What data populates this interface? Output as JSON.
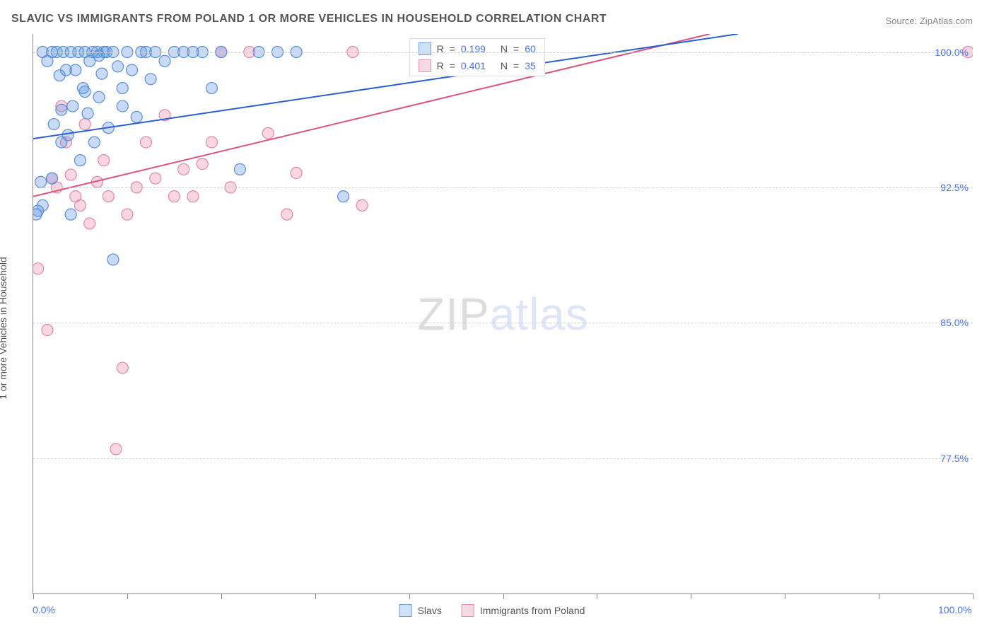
{
  "title": "SLAVIC VS IMMIGRANTS FROM POLAND 1 OR MORE VEHICLES IN HOUSEHOLD CORRELATION CHART",
  "source_label": "Source: ",
  "source_value": "ZipAtlas.com",
  "ylabel": "1 or more Vehicles in Household",
  "watermark_a": "ZIP",
  "watermark_b": "atlas",
  "axes": {
    "xlim": [
      0,
      100
    ],
    "ylim": [
      70,
      101
    ],
    "yticks": [
      77.5,
      85.0,
      92.5,
      100.0
    ],
    "ytick_labels": [
      "77.5%",
      "85.0%",
      "92.5%",
      "100.0%"
    ],
    "xticks": [
      0,
      10,
      20,
      30,
      40,
      50,
      60,
      70,
      80,
      90,
      100
    ],
    "xlabel_min": "0.0%",
    "xlabel_max": "100.0%",
    "grid_color": "#d0d0d0",
    "axis_color": "#888888",
    "tick_label_color": "#4a74e8"
  },
  "series": {
    "slavs": {
      "label": "Slavs",
      "color_fill": "rgba(96,150,230,0.35)",
      "color_stroke": "#5a8fd8",
      "swatch_fill": "#cfe0f7",
      "swatch_border": "#6a9fe0",
      "R": "0.199",
      "N": "60",
      "trend": {
        "x1": 0,
        "y1": 95.2,
        "x2": 75,
        "y2": 101,
        "stroke": "#2a5fd0",
        "width": 2
      },
      "points": [
        [
          0.5,
          91.2
        ],
        [
          1.0,
          100
        ],
        [
          1.5,
          99.5
        ],
        [
          2.0,
          100
        ],
        [
          2.2,
          96.0
        ],
        [
          2.5,
          100
        ],
        [
          2.8,
          98.7
        ],
        [
          3.0,
          95.0
        ],
        [
          3.2,
          100
        ],
        [
          3.5,
          99.0
        ],
        [
          3.7,
          95.4
        ],
        [
          4.0,
          100
        ],
        [
          4.2,
          97.0
        ],
        [
          4.5,
          99.0
        ],
        [
          4.8,
          100
        ],
        [
          5.0,
          94.0
        ],
        [
          5.3,
          98.0
        ],
        [
          5.5,
          100
        ],
        [
          5.8,
          96.6
        ],
        [
          6.0,
          99.5
        ],
        [
          6.3,
          100
        ],
        [
          6.5,
          95.0
        ],
        [
          6.8,
          100
        ],
        [
          7.0,
          97.5
        ],
        [
          7.3,
          98.8
        ],
        [
          7.5,
          100
        ],
        [
          7.8,
          100
        ],
        [
          8.0,
          95.8
        ],
        [
          8.5,
          100
        ],
        [
          9.0,
          99.2
        ],
        [
          9.5,
          98.0
        ],
        [
          10.0,
          100
        ],
        [
          10.5,
          99.0
        ],
        [
          11.0,
          96.4
        ],
        [
          11.5,
          100
        ],
        [
          12.0,
          100
        ],
        [
          12.5,
          98.5
        ],
        [
          13.0,
          100
        ],
        [
          14.0,
          99.5
        ],
        [
          15.0,
          100
        ],
        [
          16.0,
          100
        ],
        [
          17.0,
          100
        ],
        [
          18.0,
          100
        ],
        [
          19.0,
          98.0
        ],
        [
          20.0,
          100
        ],
        [
          22.0,
          93.5
        ],
        [
          24.0,
          100
        ],
        [
          26.0,
          100
        ],
        [
          28.0,
          100
        ],
        [
          33.0,
          92.0
        ],
        [
          8.5,
          88.5
        ],
        [
          1.0,
          91.5
        ],
        [
          0.3,
          91.0
        ],
        [
          0.8,
          92.8
        ],
        [
          4.0,
          91.0
        ],
        [
          2.0,
          93.0
        ],
        [
          3.0,
          96.8
        ],
        [
          5.5,
          97.8
        ],
        [
          7.0,
          99.8
        ],
        [
          9.5,
          97.0
        ]
      ]
    },
    "poland": {
      "label": "Immigrants from Poland",
      "color_fill": "rgba(235,130,165,0.32)",
      "color_stroke": "#e187a8",
      "swatch_fill": "#f7d9e4",
      "swatch_border": "#e493b2",
      "R": "0.401",
      "N": "35",
      "trend": {
        "x1": 0,
        "y1": 92.0,
        "x2": 72,
        "y2": 101,
        "stroke": "#d9557e",
        "width": 2
      },
      "points": [
        [
          0.5,
          88.0
        ],
        [
          1.5,
          84.6
        ],
        [
          2.0,
          93.0
        ],
        [
          2.5,
          92.5
        ],
        [
          3.0,
          97.0
        ],
        [
          3.5,
          95.0
        ],
        [
          4.0,
          93.2
        ],
        [
          4.5,
          92.0
        ],
        [
          5.0,
          91.5
        ],
        [
          5.5,
          96.0
        ],
        [
          6.0,
          90.5
        ],
        [
          6.8,
          92.8
        ],
        [
          7.5,
          94.0
        ],
        [
          8.0,
          92.0
        ],
        [
          8.8,
          78.0
        ],
        [
          10.0,
          91.0
        ],
        [
          11.0,
          92.5
        ],
        [
          12.0,
          95.0
        ],
        [
          13.0,
          93.0
        ],
        [
          14.0,
          96.5
        ],
        [
          15.0,
          92.0
        ],
        [
          16.0,
          93.5
        ],
        [
          17.0,
          92.0
        ],
        [
          18.0,
          93.8
        ],
        [
          19.0,
          95.0
        ],
        [
          20.0,
          100
        ],
        [
          21.0,
          92.5
        ],
        [
          23.0,
          100
        ],
        [
          25.0,
          95.5
        ],
        [
          27.0,
          91.0
        ],
        [
          28.0,
          93.3
        ],
        [
          9.5,
          82.5
        ],
        [
          34.0,
          100
        ],
        [
          35.0,
          91.5
        ],
        [
          99.5,
          100
        ]
      ]
    }
  },
  "legend_top_labels": {
    "R": "R",
    "eq": "=",
    "N": "N"
  },
  "marker_radius": 8
}
